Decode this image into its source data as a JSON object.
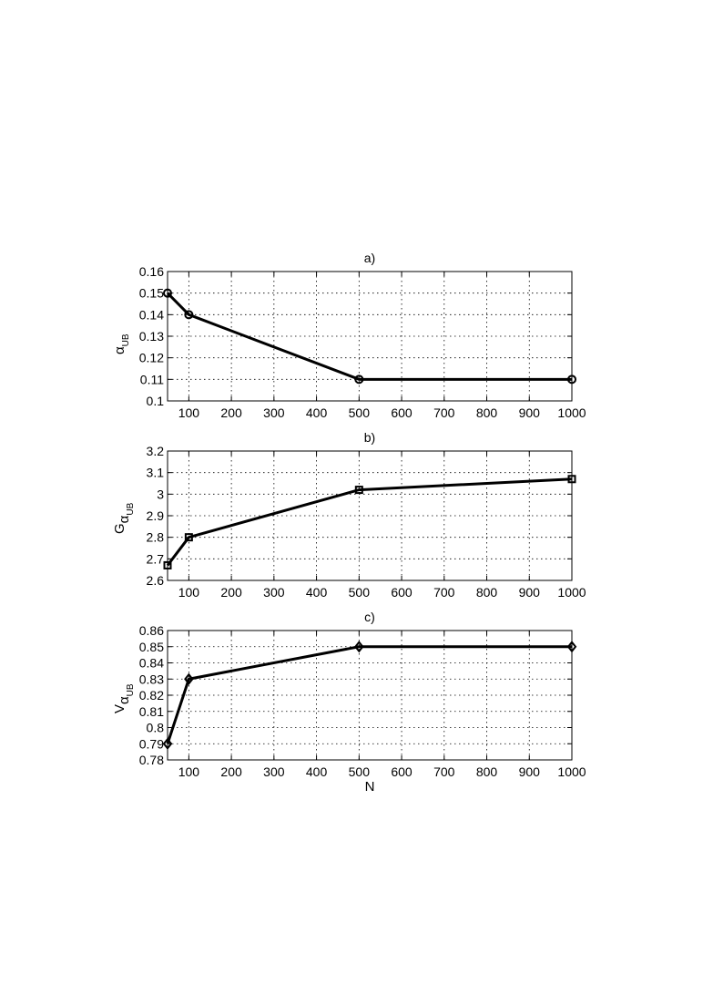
{
  "chart_data": [
    {
      "type": "line",
      "title": "a)",
      "ylabel": {
        "main": "α",
        "sub": "UB",
        "subsub": ""
      },
      "xlabel": "",
      "x": [
        50,
        100,
        500,
        1000
      ],
      "xlim": [
        50,
        1000
      ],
      "xticks": [
        100,
        200,
        300,
        400,
        500,
        600,
        700,
        800,
        900,
        1000
      ],
      "xtick_labels": [
        "100",
        "200",
        "300",
        "400",
        "500",
        "600",
        "700",
        "800",
        "900",
        "1000"
      ],
      "ylim": [
        0.1,
        0.16
      ],
      "yticks": [
        0.1,
        0.11,
        0.12,
        0.13,
        0.14,
        0.15,
        0.16
      ],
      "ytick_labels": [
        "0.1",
        "0.11",
        "0.12",
        "0.13",
        "0.14",
        "0.15",
        "0.16"
      ],
      "series": [
        {
          "marker": "circle",
          "values": [
            0.15,
            0.14,
            0.11,
            0.11
          ]
        }
      ],
      "grid": true
    },
    {
      "type": "line",
      "title": "b)",
      "ylabel": {
        "main": "G",
        "sub": "α",
        "subsub": "UB"
      },
      "xlabel": "",
      "x": [
        50,
        100,
        500,
        1000
      ],
      "xlim": [
        50,
        1000
      ],
      "xticks": [
        100,
        200,
        300,
        400,
        500,
        600,
        700,
        800,
        900,
        1000
      ],
      "xtick_labels": [
        "100",
        "200",
        "300",
        "400",
        "500",
        "600",
        "700",
        "800",
        "900",
        "1000"
      ],
      "ylim": [
        2.6,
        3.2
      ],
      "yticks": [
        2.6,
        2.7,
        2.8,
        2.9,
        3.0,
        3.1,
        3.2
      ],
      "ytick_labels": [
        "2.6",
        "2.7",
        "2.8",
        "2.9",
        "3",
        "3.1",
        "3.2"
      ],
      "series": [
        {
          "marker": "square",
          "values": [
            2.67,
            2.8,
            3.02,
            3.07
          ]
        }
      ],
      "grid": true
    },
    {
      "type": "line",
      "title": "c)",
      "ylabel": {
        "main": "V",
        "sub": "α",
        "subsub": "UB"
      },
      "xlabel": "N",
      "x": [
        50,
        100,
        500,
        1000
      ],
      "xlim": [
        50,
        1000
      ],
      "xticks": [
        100,
        200,
        300,
        400,
        500,
        600,
        700,
        800,
        900,
        1000
      ],
      "xtick_labels": [
        "100",
        "200",
        "300",
        "400",
        "500",
        "600",
        "700",
        "800",
        "900",
        "1000"
      ],
      "ylim": [
        0.78,
        0.86
      ],
      "yticks": [
        0.78,
        0.79,
        0.8,
        0.81,
        0.82,
        0.83,
        0.84,
        0.85,
        0.86
      ],
      "ytick_labels": [
        "0.78",
        "0.79",
        "0.8",
        "0.81",
        "0.82",
        "0.83",
        "0.84",
        "0.85",
        "0.86"
      ],
      "series": [
        {
          "marker": "diamond",
          "values": [
            0.79,
            0.83,
            0.85,
            0.85
          ]
        }
      ],
      "grid": true
    }
  ]
}
